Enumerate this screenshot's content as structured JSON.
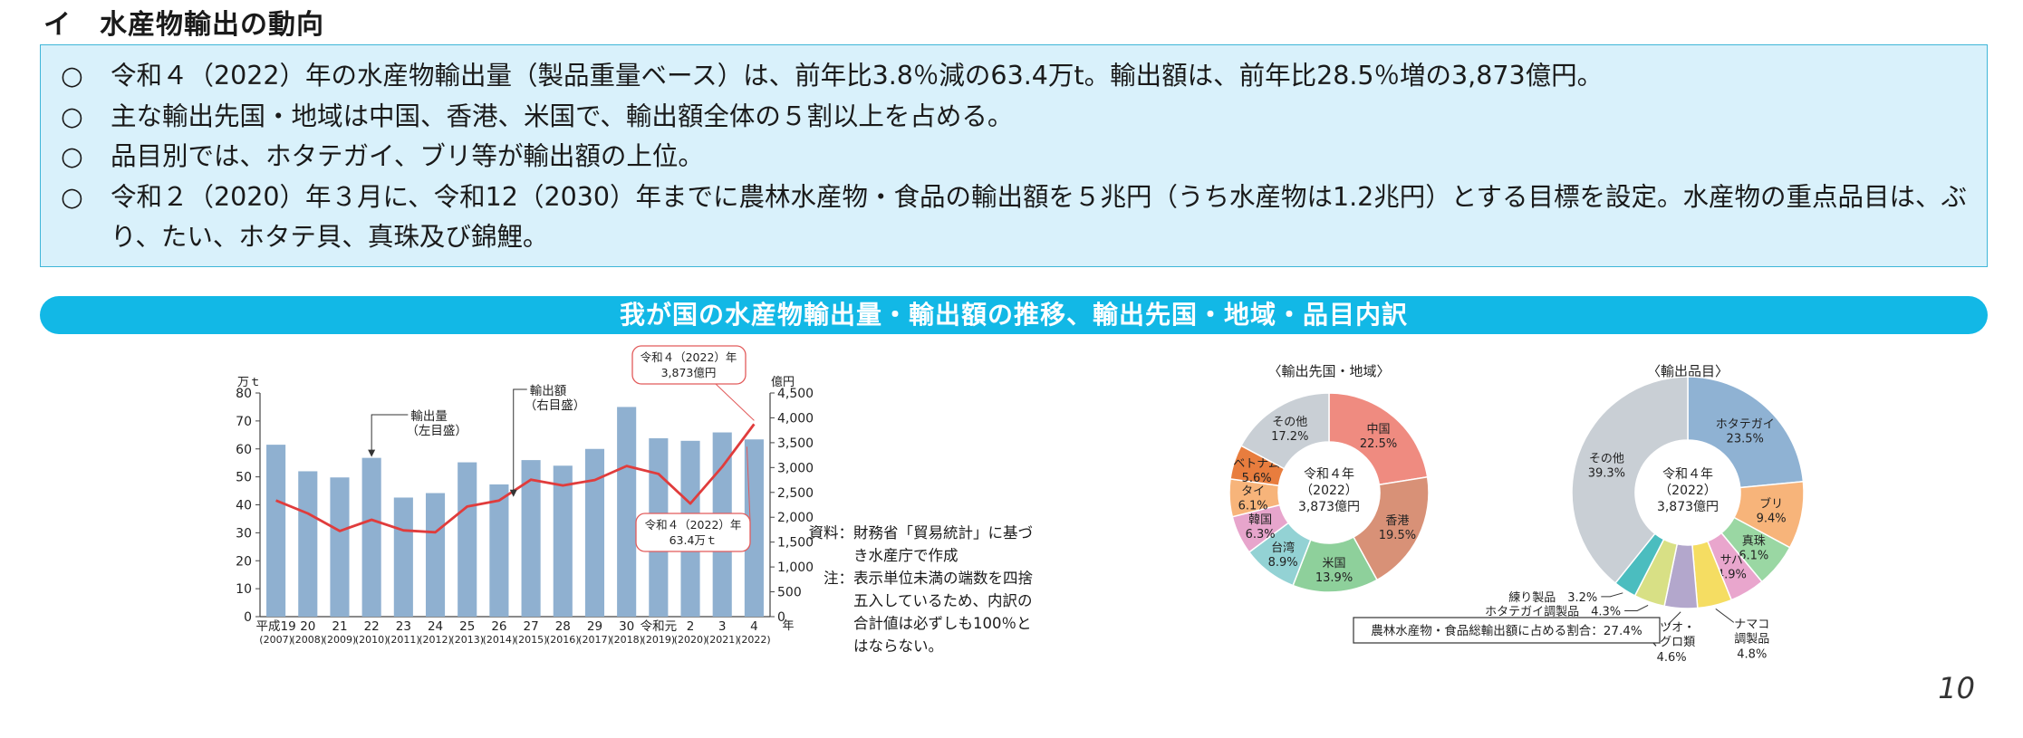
{
  "section_heading": "イ　水産物輸出の動向",
  "summary_bullets": [
    {
      "mark": "○",
      "text": "令和４（2022）年の水産物輸出量（製品重量ベース）は、前年比3.8％減の63.4万t。輸出額は、前年比28.5％増の3,873億円。"
    },
    {
      "mark": "○",
      "text": "主な輸出先国・地域は中国、香港、米国で、輸出額全体の５割以上を占める。"
    },
    {
      "mark": "○",
      "text": "品目別では、ホタテガイ、ブリ等が輸出額の上位。"
    },
    {
      "mark": "○",
      "text": "令和２（2020）年３月に、令和12（2030）年までに農林水産物・食品の輸出額を５兆円（うち水産物は1.2兆円）とする目標を設定。水産物の重点品目は、ぶり、たい、ホタテ貝、真珠及び錦鯉。"
    }
  ],
  "banner_title": "我が国の水産物輸出量・輸出額の推移、輸出先国・地域・品目内訳",
  "page_number": "10",
  "source_note": {
    "source_label": "資料：",
    "source_text": "財務省「貿易統計」に基づき水産庁で作成",
    "note_label": "注：",
    "note_text": "表示単位未満の端数を四捨五入しているため、内訳の合計値は必ずしも100％とはならない。"
  },
  "chart_data": [
    {
      "type": "bar",
      "left_unit": "万ｔ",
      "right_unit": "億円",
      "x_unit": "年",
      "y_left": {
        "min": 0,
        "max": 80,
        "ticks": [
          0,
          10,
          20,
          30,
          40,
          50,
          60,
          70,
          80
        ]
      },
      "y_right": {
        "min": 0,
        "max": 4500,
        "ticks": [
          0,
          500,
          1000,
          1500,
          2000,
          2500,
          3000,
          3500,
          4000,
          4500
        ],
        "tick_labels": [
          "0",
          "500",
          "1,000",
          "1,500",
          "2,000",
          "2,500",
          "3,000",
          "3,500",
          "4,000",
          "4,500"
        ]
      },
      "categories": [
        "平成19",
        "20",
        "21",
        "22",
        "23",
        "24",
        "25",
        "26",
        "27",
        "28",
        "29",
        "30",
        "令和元",
        "2",
        "3",
        "4"
      ],
      "category_years": [
        "(2007)",
        "(2008)",
        "(2009)",
        "(2010)",
        "(2011)",
        "(2012)",
        "(2013)",
        "(2014)",
        "(2015)",
        "(2016)",
        "(2017)",
        "(2018)",
        "(2019)",
        "(2020)",
        "(2021)",
        "(2022)"
      ],
      "series": [
        {
          "name": "輸出量",
          "axis": "left",
          "kind": "bar",
          "color": "#8fb0d0",
          "values": [
            61.5,
            52.0,
            49.8,
            56.8,
            42.6,
            44.2,
            55.2,
            47.3,
            56.0,
            54.0,
            60.0,
            75.0,
            63.8,
            62.9,
            65.9,
            63.4
          ]
        },
        {
          "name": "輸出額",
          "axis": "right",
          "kind": "line",
          "color": "#e03c3c",
          "values": [
            2337,
            2077,
            1724,
            1950,
            1736,
            1698,
            2216,
            2337,
            2757,
            2640,
            2749,
            3031,
            2873,
            2276,
            3015,
            3873
          ]
        }
      ],
      "annotations": [
        {
          "line1": "輸出量",
          "line2": "（左目盛）"
        },
        {
          "line1": "輸出額",
          "line2": "（右目盛）"
        },
        {
          "line1": "令和４（2022）年",
          "line2": "3,873億円"
        },
        {
          "line1": "令和４（2022）年",
          "line2": "63.4万ｔ"
        }
      ]
    },
    {
      "type": "pie",
      "title": "〈輸出先国・地域〉",
      "center": [
        "令和４年",
        "（2022）",
        "3,873億円"
      ],
      "slices": [
        {
          "label": "中国",
          "pct": "22.5%",
          "value": 22.5,
          "color": "#ef8b80"
        },
        {
          "label": "香港",
          "pct": "19.5%",
          "value": 19.5,
          "color": "#d89177"
        },
        {
          "label": "米国",
          "pct": "13.9%",
          "value": 13.9,
          "color": "#8ed09b"
        },
        {
          "label": "台湾",
          "pct": "8.9%",
          "value": 8.9,
          "color": "#93d2d4"
        },
        {
          "label": "韓国",
          "pct": "6.3%",
          "value": 6.3,
          "color": "#e7a5cc"
        },
        {
          "label": "タイ",
          "pct": "6.1%",
          "value": 6.1,
          "color": "#f7b47a"
        },
        {
          "label": "ベトナム",
          "pct": "5.6%",
          "value": 5.6,
          "color": "#e87d3e"
        },
        {
          "label": "その他",
          "pct": "17.2%",
          "value": 17.2,
          "color": "#c9cfd5"
        }
      ]
    },
    {
      "type": "pie",
      "title": "〈輸出品目〉",
      "center": [
        "令和４年",
        "（2022）",
        "3,873億円"
      ],
      "slices": [
        {
          "label": "ホタテガイ",
          "pct": "23.5%",
          "value": 23.5,
          "color": "#8fb2d3"
        },
        {
          "label": "ブリ",
          "pct": "9.4%",
          "value": 9.4,
          "color": "#f7b47a"
        },
        {
          "label": "真珠",
          "pct": "6.1%",
          "value": 6.1,
          "color": "#9ad7a3"
        },
        {
          "label": "サバ",
          "pct": "4.9%",
          "value": 4.9,
          "color": "#e9a6cd"
        },
        {
          "label": "ナマコ調製品",
          "pct": "4.8%",
          "value": 4.8,
          "color": "#f5dd62"
        },
        {
          "label": "カツオ・マグロ類",
          "pct": "4.6%",
          "value": 4.6,
          "color": "#b3a7cc"
        },
        {
          "label": "ホタテガイ調製品",
          "pct": "4.3%",
          "value": 4.3,
          "color": "#d8e085"
        },
        {
          "label": "練り製品",
          "pct": "3.2%",
          "value": 3.2,
          "color": "#4bbdbf"
        },
        {
          "label": "その他",
          "pct": "39.3%",
          "value": 39.3,
          "color": "#c9cfd5"
        }
      ],
      "footnote": "農林水産物・食品総輸出額に占める割合：27.4%"
    }
  ]
}
